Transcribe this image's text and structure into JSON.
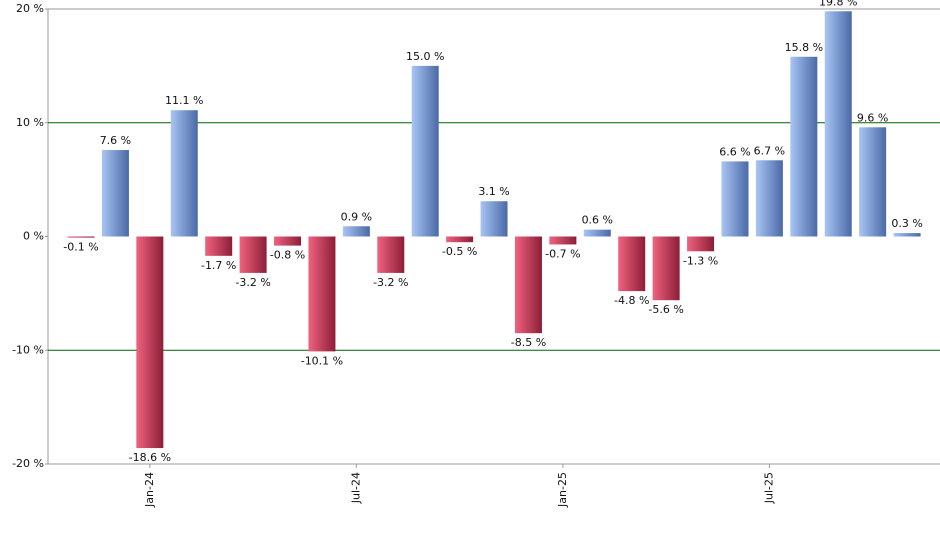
{
  "chart_data": {
    "type": "bar",
    "categories": [
      null,
      null,
      "Jan-24",
      null,
      null,
      null,
      null,
      null,
      "Jul-24",
      null,
      null,
      null,
      null,
      null,
      "Jan-25",
      null,
      null,
      null,
      null,
      null,
      "Jul-25",
      null,
      null,
      null,
      null
    ],
    "values": [
      -0.1,
      7.6,
      -18.6,
      11.1,
      -1.7,
      -3.2,
      -0.8,
      -10.1,
      0.9,
      -3.2,
      15.0,
      -0.5,
      3.1,
      -8.5,
      -0.7,
      0.6,
      -4.8,
      -5.6,
      -1.3,
      6.6,
      6.7,
      15.8,
      19.8,
      9.6,
      0.3
    ],
    "value_labels": [
      "-0.1 %",
      "7.6 %",
      "-18.6 %",
      "11.1 %",
      "-1.7 %",
      "-3.2 %",
      "-0.8 %",
      "-10.1 %",
      "0.9 %",
      "-3.2 %",
      "15.0 %",
      "-0.5 %",
      "3.1 %",
      "-8.5 %",
      "-0.7 %",
      "0.6 %",
      "-4.8 %",
      "-5.6 %",
      "-1.3 %",
      "6.6 %",
      "6.7 %",
      "15.8 %",
      "19.8 %",
      "9.6 %",
      "0.3 %"
    ],
    "ylim": [
      -20,
      20
    ],
    "yticks": [
      {
        "value": -20,
        "label": "-20 %"
      },
      {
        "value": -10,
        "label": "-10 %"
      },
      {
        "value": 0,
        "label": "0 %"
      },
      {
        "value": 10,
        "label": "10 %"
      },
      {
        "value": 20,
        "label": "20 %"
      }
    ],
    "grid": true,
    "grid_color": "#006400",
    "positive_colors": [
      "#a9c5f5",
      "#4a69a6"
    ],
    "negative_colors": [
      "#f0627f",
      "#8c1e37"
    ]
  }
}
